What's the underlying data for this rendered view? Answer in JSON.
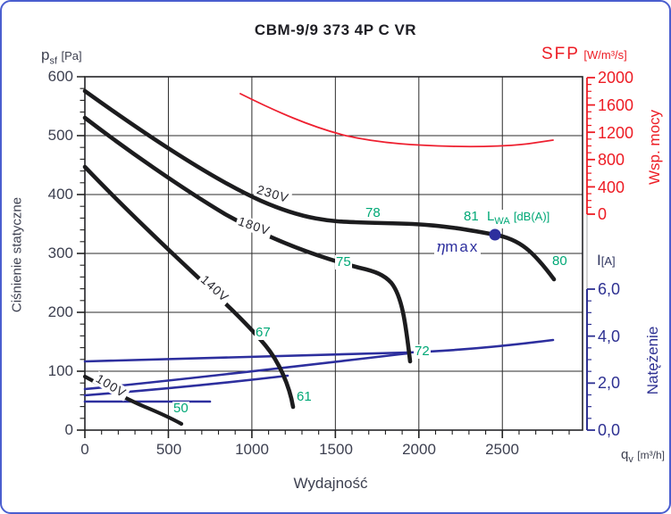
{
  "title": "CBM-9/9 373 4P C VR",
  "colors": {
    "pressure_curves": "#1c1c1e",
    "sfp_curve": "#ed1c24",
    "current_curves": "#2d2f9e",
    "sound_labels": "#00a876",
    "axis_text": "#3d4050",
    "frame_border": "#4a5ecf"
  },
  "axes": {
    "pressure": {
      "sym": "p",
      "sub": "sf",
      "unit": "[Pa]",
      "vtitle": "Ciśnienie statyczne",
      "ticks": [
        "600",
        "500",
        "400",
        "300",
        "200",
        "100",
        "0"
      ]
    },
    "flow": {
      "sym": "q",
      "sub": "v",
      "unit": "[m³/h]",
      "title": "Wydajność",
      "ticks": [
        "0",
        "500",
        "1000",
        "1500",
        "2000",
        "2500"
      ]
    },
    "sfp": {
      "name": "SFP",
      "unit": "[W/m³/s]",
      "vtitle": "Wsp. mocy",
      "ticks": [
        "2000",
        "1600",
        "1200",
        "800",
        "400",
        "0"
      ]
    },
    "current": {
      "sym": "I",
      "unit": "[A]",
      "vtitle": "Natężenie",
      "ticks": [
        "6,0",
        "4,0",
        "2,0",
        "0,0"
      ]
    }
  },
  "curve_labels": {
    "v230": "230V",
    "v180": "180V",
    "v140": "140V",
    "v100": "100V"
  },
  "sound_labels": {
    "s78": "78",
    "s81": "81",
    "s80": "80",
    "s75": "75",
    "s72": "72",
    "s67": "67",
    "s61": "61",
    "s50": "50",
    "legend_pre": "L",
    "legend_sub": "WA",
    "legend_unit": "[dB(A)]"
  },
  "annotations": {
    "eta_sym": "η",
    "eta_sub": "max"
  },
  "chart_data": {
    "type": "line",
    "title": "CBM-9/9 373 4P C VR",
    "x_axis": {
      "label": "Wydajność",
      "symbol": "qv [m³/h]",
      "range": [
        0,
        3000
      ],
      "major_tick": 500,
      "minor_tick": 100
    },
    "y_axis_left": {
      "label": "Ciśnienie statyczne",
      "symbol": "psf [Pa]",
      "range": [
        0,
        600
      ],
      "major_tick": 100,
      "minor_tick": 20
    },
    "y_axis_right_top": {
      "label": "Wsp. mocy",
      "symbol": "SFP [W/m³/s]",
      "range": [
        0,
        2000
      ],
      "major_tick": 400,
      "minor_tick": 100
    },
    "y_axis_right_bottom": {
      "label": "Natężenie",
      "symbol": "I [A]",
      "range": [
        0,
        6
      ],
      "major_tick": 2,
      "minor_tick": 0.5
    },
    "grid": true,
    "series": [
      {
        "name": "pressure 230V",
        "axis": "left",
        "color": "#1c1c1e",
        "points": [
          [
            0,
            576
          ],
          [
            500,
            488
          ],
          [
            1000,
            397
          ],
          [
            1500,
            356
          ],
          [
            2000,
            348
          ],
          [
            2500,
            330
          ],
          [
            2810,
            255
          ]
        ]
      },
      {
        "name": "pressure 180V",
        "axis": "left",
        "color": "#1c1c1e",
        "points": [
          [
            0,
            530
          ],
          [
            500,
            424
          ],
          [
            1000,
            341
          ],
          [
            1500,
            290
          ],
          [
            1790,
            258
          ],
          [
            1950,
            115
          ]
        ]
      },
      {
        "name": "pressure 140V",
        "axis": "left",
        "color": "#1c1c1e",
        "points": [
          [
            0,
            447
          ],
          [
            500,
            308
          ],
          [
            1000,
            167
          ],
          [
            1240,
            38
          ]
        ]
      },
      {
        "name": "pressure 100V",
        "axis": "left",
        "color": "#1c1c1e",
        "points": [
          [
            0,
            91
          ],
          [
            300,
            47
          ],
          [
            575,
            11
          ]
        ]
      },
      {
        "name": "SFP",
        "axis": "right_top",
        "color": "#ed1c24",
        "points": [
          [
            930,
            1765
          ],
          [
            1250,
            1330
          ],
          [
            1535,
            1150
          ],
          [
            2020,
            1045
          ],
          [
            2500,
            1020
          ],
          [
            2805,
            1085
          ]
        ]
      },
      {
        "name": "current 230V",
        "axis": "right_bottom",
        "color": "#2d2f9e",
        "points": [
          [
            0,
            2.9
          ],
          [
            1950,
            3.3
          ],
          [
            2810,
            3.85
          ]
        ]
      },
      {
        "name": "current 180V",
        "axis": "right_bottom",
        "color": "#2d2f9e",
        "points": [
          [
            0,
            1.75
          ],
          [
            1000,
            2.6
          ],
          [
            1950,
            3.25
          ]
        ]
      },
      {
        "name": "current 140V",
        "axis": "right_bottom",
        "color": "#2d2f9e",
        "points": [
          [
            0,
            1.5
          ],
          [
            600,
            1.9
          ],
          [
            1240,
            2.3
          ]
        ]
      },
      {
        "name": "current 100V",
        "axis": "right_bottom",
        "color": "#2d2f9e",
        "points": [
          [
            0,
            1.2
          ],
          [
            750,
            1.2
          ]
        ]
      }
    ],
    "sound_power_labels_dBA": [
      {
        "value": 78,
        "curve": "230V",
        "at_q": 1720
      },
      {
        "value": 81,
        "curve": "230V",
        "at_q": 2280
      },
      {
        "value": 80,
        "curve": "230V",
        "at_q": 2820
      },
      {
        "value": 75,
        "curve": "180V",
        "at_q": 1550
      },
      {
        "value": 72,
        "curve": "180V",
        "at_q": 1975
      },
      {
        "value": 67,
        "curve": "140V",
        "at_q": 1070
      },
      {
        "value": 61,
        "curve": "140V",
        "at_q": 1320
      },
      {
        "value": 50,
        "curve": "100V",
        "at_q": 555
      }
    ],
    "eta_max_point": {
      "q": 2455,
      "p": 332
    },
    "legend_position": "none"
  }
}
